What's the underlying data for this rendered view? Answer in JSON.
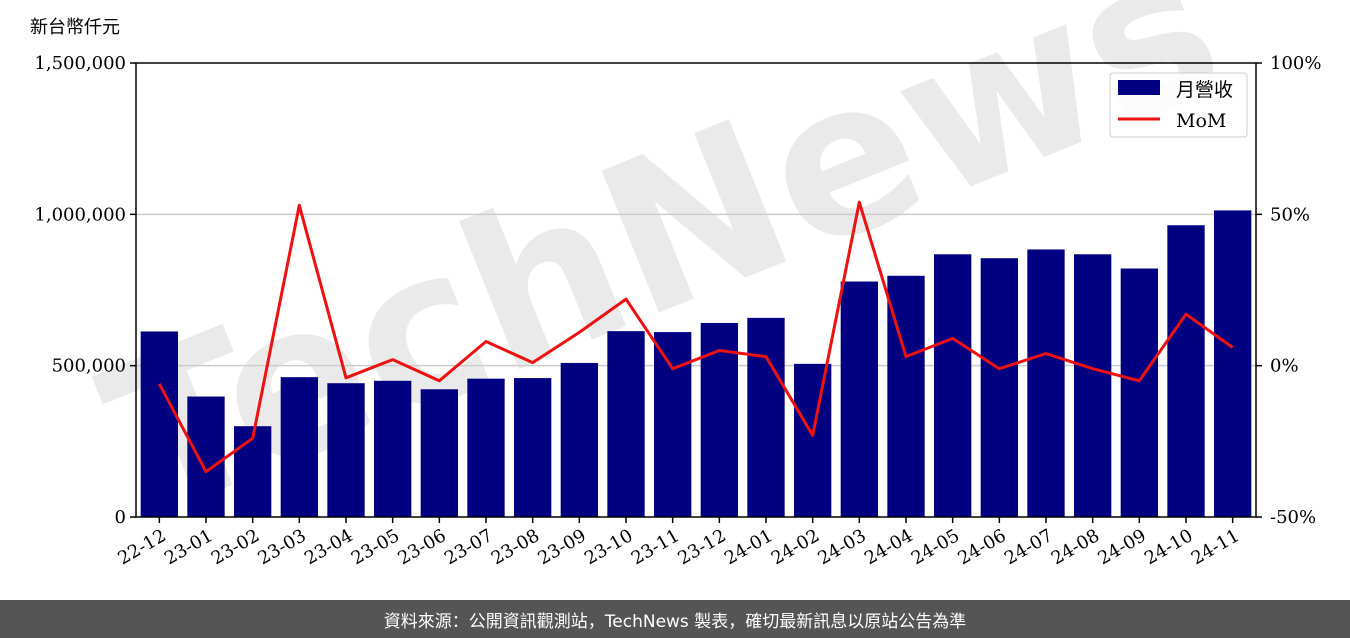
{
  "footer": {
    "source_text": "資料來源：公開資訊觀測站，TechNews 製表，確切最新訊息以原站公告為準"
  },
  "watermark": {
    "text": "TechNews"
  },
  "colors": {
    "bar": "#000080",
    "line": "#ee1111",
    "grid": "#cccccc",
    "footer_bg": "#555555"
  },
  "chart_data": {
    "type": "bar",
    "unit_label": "新台幣仟元",
    "categories": [
      "22-12",
      "23-01",
      "23-02",
      "23-03",
      "23-04",
      "23-05",
      "23-06",
      "23-07",
      "23-08",
      "23-09",
      "23-10",
      "23-11",
      "23-12",
      "24-01",
      "24-02",
      "24-03",
      "24-04",
      "24-05",
      "24-06",
      "24-07",
      "24-08",
      "24-09",
      "24-10",
      "24-11"
    ],
    "series": [
      {
        "name": "月營收",
        "type": "bar",
        "axis": "left",
        "values": [
          613000,
          398000,
          300000,
          462000,
          442000,
          450000,
          422000,
          457000,
          459000,
          509000,
          614000,
          611000,
          641000,
          658000,
          506000,
          778000,
          797000,
          868000,
          855000,
          884000,
          868000,
          821000,
          964000,
          1013000
        ]
      },
      {
        "name": "MoM",
        "type": "line",
        "axis": "right",
        "unit": "%",
        "values": [
          -6,
          -35,
          -24,
          53,
          -4,
          2,
          -5,
          8,
          1,
          11,
          22,
          -1,
          5,
          3,
          -23,
          54,
          3,
          9,
          -1,
          4,
          -1,
          -5,
          17,
          6
        ]
      }
    ],
    "y_left": {
      "min": 0,
      "max": 1500000,
      "ticks": [
        0,
        500000,
        1000000,
        1500000
      ],
      "tick_labels": [
        "0",
        "500,000",
        "1,000,000",
        "1,500,000"
      ]
    },
    "y_right": {
      "min": -50,
      "max": 100,
      "ticks": [
        -50,
        0,
        50,
        100
      ],
      "tick_labels": [
        "-50%",
        "0%",
        "50%",
        "100%"
      ]
    },
    "grid": "horizontal",
    "legend_position": "top-right"
  }
}
